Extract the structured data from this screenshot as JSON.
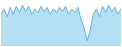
{
  "chart_data": {
    "type": "area",
    "values": [
      55,
      65,
      50,
      68,
      55,
      70,
      58,
      72,
      60,
      70,
      55,
      65,
      58,
      70,
      60,
      68,
      55,
      65,
      58,
      68,
      60,
      70,
      55,
      65,
      58,
      68,
      45,
      30,
      5,
      25,
      55,
      65,
      50,
      70,
      58,
      72,
      60,
      68,
      55,
      65
    ],
    "color": "#5BB8E8",
    "ylim": [
      -5,
      80
    ],
    "tick_labels": false,
    "grid": false
  }
}
